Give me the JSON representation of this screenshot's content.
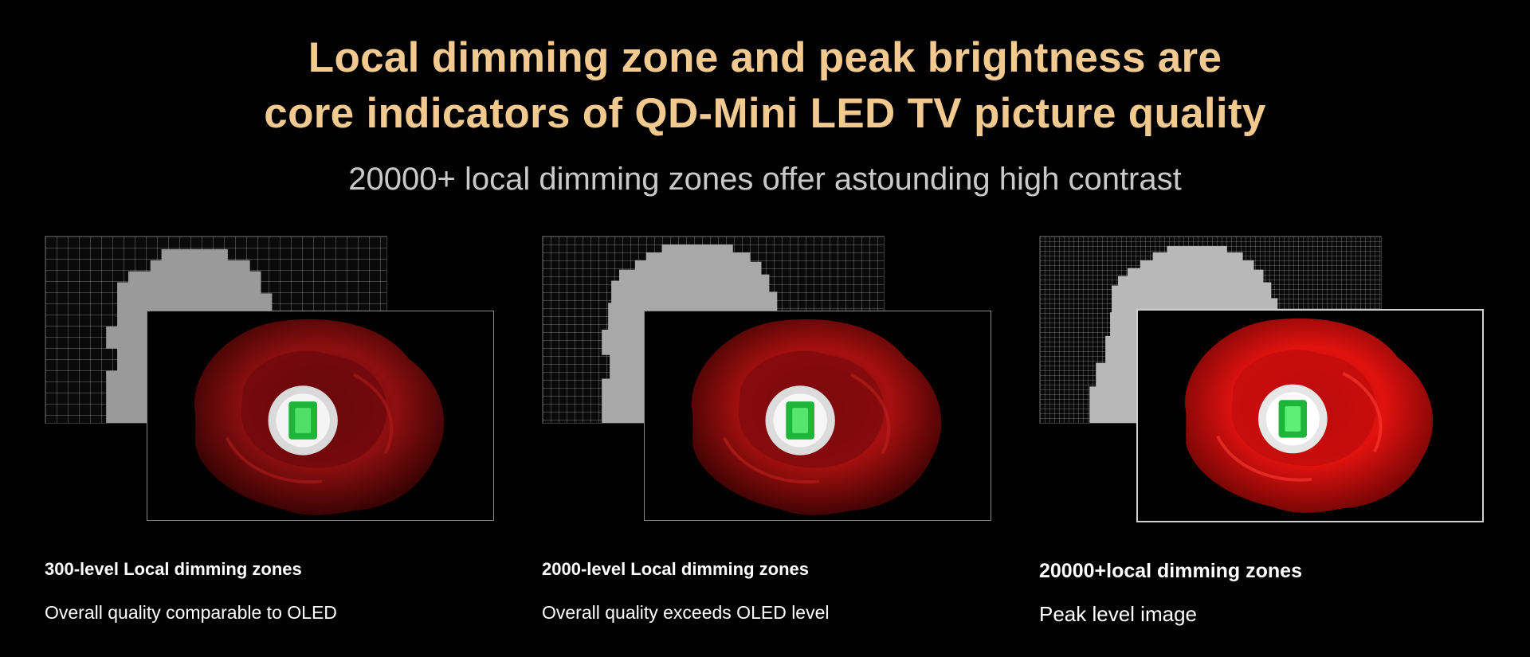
{
  "headline": {
    "line1": "Local dimming zone and peak brightness are",
    "line2": "core indicators of QD-Mini LED TV picture quality"
  },
  "subheadline": "20000+ local dimming zones offer astounding high contrast",
  "panels": [
    {
      "title": "300-level Local dimming zones",
      "description": "Overall quality comparable to OLED",
      "grid_color": "#9a9a9a",
      "rose_color": "#8e0f10"
    },
    {
      "title": "2000-level Local dimming zones",
      "description": "Overall quality exceeds OLED level",
      "grid_color": "#a8a8a8",
      "rose_color": "#a5100f"
    },
    {
      "title": "20000+local dimming zones",
      "description": "Peak level image",
      "grid_color": "#b8b8b8",
      "rose_color": "#e0120f"
    }
  ],
  "colors": {
    "background": "#000000",
    "headline": "#f2c98e",
    "subheadline": "#c9c9c9",
    "caption": "#ffffff",
    "gem": "#1fb53a"
  }
}
